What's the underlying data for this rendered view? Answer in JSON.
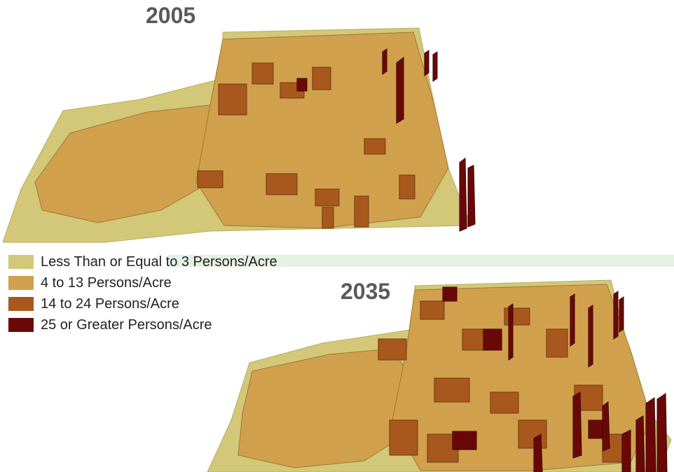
{
  "maps": [
    {
      "year_label": "2005"
    },
    {
      "year_label": "2035"
    }
  ],
  "legend": {
    "items": [
      {
        "label": "Less Than or Equal to 3 Persons/Acre",
        "color": "#d2c878"
      },
      {
        "label": "4 to 13 Persons/Acre",
        "color": "#d0a04c"
      },
      {
        "label": "14 to 24 Persons/Acre",
        "color": "#a8581c"
      },
      {
        "label": "25 or Greater Persons/Acre",
        "color": "#6a0808"
      }
    ]
  }
}
